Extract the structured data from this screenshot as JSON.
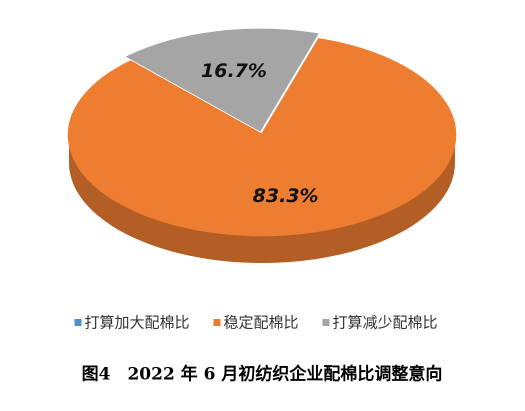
{
  "chart_data": {
    "type": "pie",
    "categories": [
      "打算加大配棉比",
      "稳定配棉比",
      "打算减少配棉比"
    ],
    "values": [
      0,
      83.3,
      16.7
    ],
    "value_labels": [
      null,
      "83.3%",
      "16.7%"
    ],
    "colors": [
      "#4f8fd0",
      "#ed7d31",
      "#a5a5a5"
    ],
    "legend": "bottom",
    "caption": "图4　2022 年 6 月初纺织企业配棉比调整意向"
  }
}
